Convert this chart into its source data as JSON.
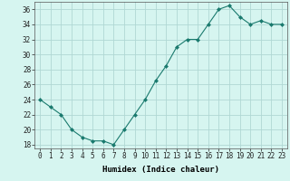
{
  "x": [
    0,
    1,
    2,
    3,
    4,
    5,
    6,
    7,
    8,
    9,
    10,
    11,
    12,
    13,
    14,
    15,
    16,
    17,
    18,
    19,
    20,
    21,
    22,
    23
  ],
  "y": [
    24,
    23,
    22,
    20,
    19,
    18.5,
    18.5,
    18,
    20,
    22,
    24,
    26.5,
    28.5,
    31,
    32,
    32,
    34,
    36,
    36.5,
    35,
    34,
    34.5,
    34,
    34
  ],
  "line_color": "#1a7a6e",
  "marker": "D",
  "marker_size": 2,
  "bg_color": "#d6f5f0",
  "grid_color": "#b0d8d4",
  "xlabel": "Humidex (Indice chaleur)",
  "ylim": [
    17.5,
    37
  ],
  "xlim": [
    -0.5,
    23.5
  ],
  "yticks": [
    18,
    20,
    22,
    24,
    26,
    28,
    30,
    32,
    34,
    36
  ],
  "xtick_labels": [
    "0",
    "1",
    "2",
    "3",
    "4",
    "5",
    "6",
    "7",
    "8",
    "9",
    "10",
    "11",
    "12",
    "13",
    "14",
    "15",
    "16",
    "17",
    "18",
    "19",
    "20",
    "21",
    "22",
    "23"
  ],
  "xlabel_fontsize": 6.5,
  "tick_fontsize": 5.5
}
